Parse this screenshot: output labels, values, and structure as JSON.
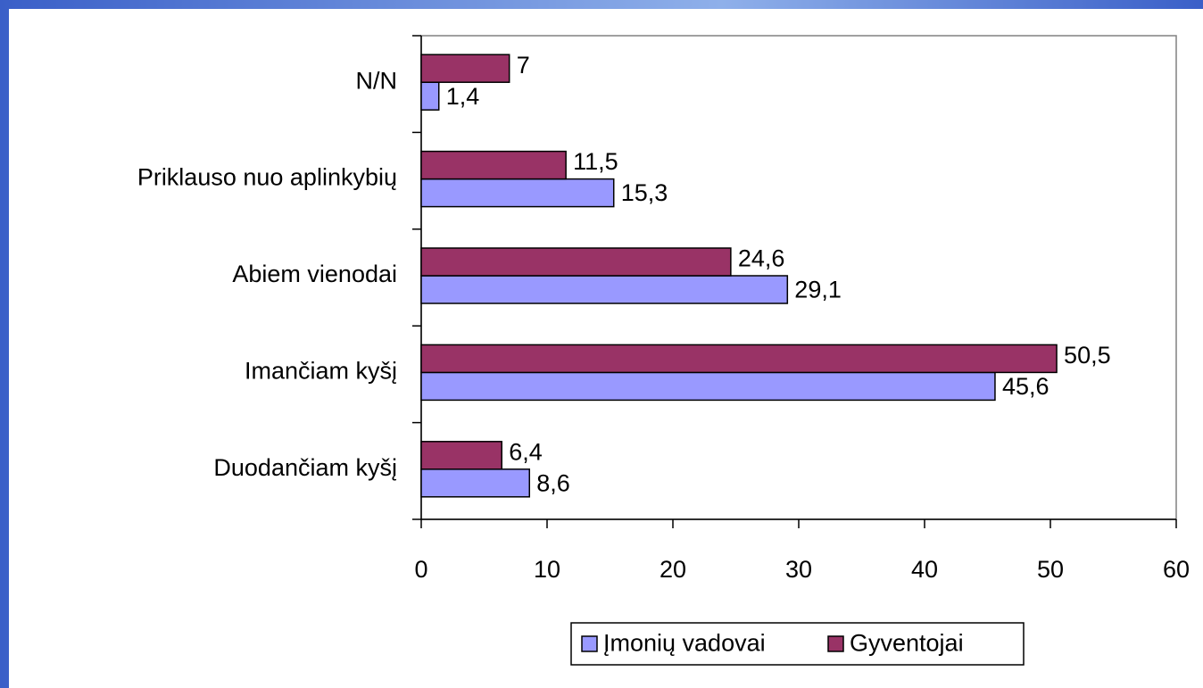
{
  "chart_data": {
    "type": "bar",
    "orientation": "horizontal",
    "categories": [
      "Duodančiam kyšį",
      "Imančiam kyšį",
      "Abiem vienodai",
      "Priklauso nuo aplinkybių",
      "N/N"
    ],
    "series": [
      {
        "name": "Įmonių vadovai",
        "color": "#9999ff",
        "values": [
          8.6,
          45.6,
          29.1,
          15.3,
          1.4
        ],
        "value_labels": [
          "8,6",
          "45,6",
          "29,1",
          "15,3",
          "1,4"
        ]
      },
      {
        "name": "Gyventojai",
        "color": "#993366",
        "values": [
          6.4,
          50.5,
          24.6,
          11.5,
          7
        ],
        "value_labels": [
          "6,4",
          "50,5",
          "24,6",
          "11,5",
          "7"
        ]
      }
    ],
    "xlim": [
      0,
      60
    ],
    "xticks": [
      0,
      10,
      20,
      30,
      40,
      50,
      60
    ],
    "grid": false,
    "legend": "bottom"
  }
}
